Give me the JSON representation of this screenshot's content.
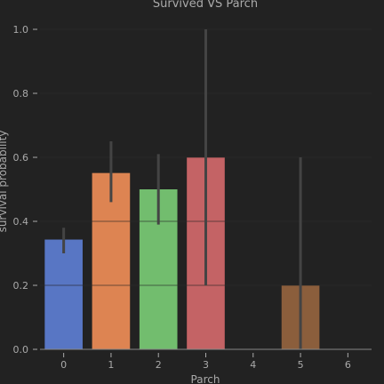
{
  "chart_data": {
    "type": "bar",
    "title": "Survived VS Parch",
    "xlabel": "Parch",
    "ylabel": "survival probability",
    "categories": [
      "0",
      "1",
      "2",
      "3",
      "4",
      "5",
      "6"
    ],
    "values": [
      0.343,
      0.551,
      0.5,
      0.6,
      0.0,
      0.2,
      0.0
    ],
    "error_bars": [
      [
        0.3,
        0.38
      ],
      [
        0.46,
        0.65
      ],
      [
        0.39,
        0.61
      ],
      [
        0.2,
        1.0
      ],
      null,
      [
        0.0,
        0.6
      ],
      null
    ],
    "bar_colors": [
      "#5876c4",
      "#dd8452",
      "#72bd6e",
      "#c46365",
      "#8c6bb1",
      "#8b5e3c",
      "#dc7ec0"
    ],
    "ylim": [
      0,
      1.0
    ],
    "yticks": [
      0.0,
      0.2,
      0.4,
      0.6,
      0.8,
      1.0
    ],
    "ytick_labels": [
      "0.0",
      "0.2",
      "0.4",
      "0.6",
      "0.8",
      "1.0"
    ],
    "grid": true,
    "background": "#222222",
    "grid_color": "#333333",
    "error_color": "#444444"
  }
}
